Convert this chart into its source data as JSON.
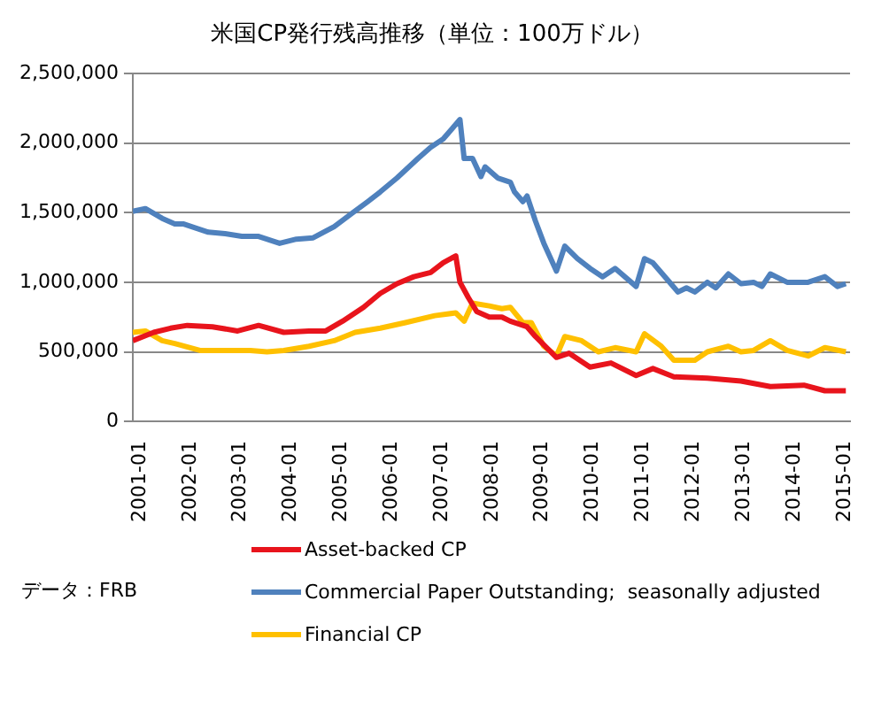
{
  "chart_data": {
    "type": "line",
    "title": "米国CP発行残高推移（単位：100万ドル）",
    "xlim": [
      "2001-01",
      "2015-04"
    ],
    "xticks": [
      "2001-01",
      "2002-01",
      "2003-01",
      "2004-01",
      "2005-01",
      "2006-01",
      "2007-01",
      "2008-01",
      "2009-01",
      "2010-01",
      "2011-01",
      "2012-01",
      "2013-01",
      "2014-01",
      "2015-01"
    ],
    "ylim": [
      0,
      2500000
    ],
    "yticks": [
      0,
      {
        "value": 500000,
        "label": "500,000"
      },
      {
        "value": 1000000,
        "label": "1,000,000"
      },
      {
        "value": 1500000,
        "label": "1,500,000"
      },
      {
        "value": 2000000,
        "label": "2,000,000"
      },
      {
        "value": 2500000,
        "label": "2,500,000"
      }
    ],
    "grid": "y",
    "legend": "bottom",
    "marker": "none",
    "line_style": "solid",
    "annotations": [
      "データ：FRB"
    ],
    "series": [
      {
        "name": "Asset-backed CP",
        "color": "#e8141c",
        "x": [
          "2001-01",
          "2001-06",
          "2001-10",
          "2002-02",
          "2002-08",
          "2003-02",
          "2003-07",
          "2004-01",
          "2004-07",
          "2004-11",
          "2005-03",
          "2005-08",
          "2005-12",
          "2006-04",
          "2006-08",
          "2006-12",
          "2007-03",
          "2007-06",
          "2007-07",
          "2007-09",
          "2007-11",
          "2008-02",
          "2008-05",
          "2008-07",
          "2008-11",
          "2009-01",
          "2009-06",
          "2009-09",
          "2010-02",
          "2010-07",
          "2011-01",
          "2011-05",
          "2011-10",
          "2012-06",
          "2013-02",
          "2013-09",
          "2014-05",
          "2014-10",
          "2015-03"
        ],
        "values": [
          580000,
          640000,
          670000,
          690000,
          680000,
          650000,
          690000,
          640000,
          650000,
          650000,
          720000,
          820000,
          920000,
          990000,
          1040000,
          1070000,
          1140000,
          1190000,
          1000000,
          890000,
          790000,
          750000,
          750000,
          720000,
          680000,
          610000,
          460000,
          490000,
          390000,
          420000,
          330000,
          380000,
          320000,
          310000,
          290000,
          250000,
          260000,
          220000,
          220000
        ]
      },
      {
        "name": "Commercial Paper Outstanding;  seasonally adjusted",
        "color": "#4f81bd",
        "x": [
          "2001-01",
          "2001-04",
          "2001-08",
          "2001-11",
          "2002-01",
          "2002-07",
          "2002-11",
          "2003-03",
          "2003-07",
          "2003-12",
          "2004-04",
          "2004-08",
          "2005-01",
          "2005-05",
          "2005-09",
          "2005-12",
          "2006-04",
          "2006-09",
          "2006-12",
          "2007-03",
          "2007-07",
          "2007-08",
          "2007-10",
          "2007-12",
          "2008-01",
          "2008-04",
          "2008-07",
          "2008-08",
          "2008-10",
          "2008-11",
          "2009-01",
          "2009-03",
          "2009-06",
          "2009-08",
          "2009-11",
          "2010-02",
          "2010-05",
          "2010-08",
          "2011-01",
          "2011-03",
          "2011-05",
          "2011-11",
          "2012-01",
          "2012-03",
          "2012-06",
          "2012-08",
          "2012-11",
          "2013-02",
          "2013-05",
          "2013-07",
          "2013-09",
          "2014-01",
          "2014-06",
          "2014-10",
          "2015-01",
          "2015-03"
        ],
        "values": [
          1510000,
          1530000,
          1460000,
          1420000,
          1420000,
          1360000,
          1350000,
          1330000,
          1330000,
          1280000,
          1310000,
          1320000,
          1400000,
          1490000,
          1580000,
          1650000,
          1750000,
          1890000,
          1970000,
          2030000,
          2170000,
          1890000,
          1890000,
          1760000,
          1830000,
          1750000,
          1720000,
          1650000,
          1580000,
          1620000,
          1440000,
          1280000,
          1080000,
          1260000,
          1170000,
          1100000,
          1040000,
          1100000,
          970000,
          1170000,
          1140000,
          930000,
          960000,
          930000,
          1000000,
          960000,
          1060000,
          990000,
          1000000,
          970000,
          1060000,
          1000000,
          1000000,
          1040000,
          970000,
          990000
        ]
      },
      {
        "name": "Financial CP",
        "color": "#ffc000",
        "x": [
          "2001-01",
          "2001-04",
          "2001-08",
          "2001-11",
          "2002-05",
          "2002-11",
          "2003-05",
          "2003-09",
          "2004-01",
          "2004-07",
          "2005-01",
          "2005-06",
          "2005-12",
          "2006-06",
          "2007-01",
          "2007-06",
          "2007-08",
          "2007-10",
          "2008-02",
          "2008-05",
          "2008-07",
          "2008-10",
          "2008-12",
          "2009-03",
          "2009-06",
          "2009-08",
          "2009-12",
          "2010-04",
          "2010-08",
          "2011-01",
          "2011-03",
          "2011-07",
          "2011-10",
          "2012-03",
          "2012-06",
          "2012-11",
          "2013-02",
          "2013-05",
          "2013-09",
          "2014-01",
          "2014-06",
          "2014-10",
          "2015-03"
        ],
        "values": [
          640000,
          650000,
          580000,
          560000,
          510000,
          510000,
          510000,
          500000,
          510000,
          540000,
          580000,
          640000,
          670000,
          710000,
          760000,
          780000,
          720000,
          850000,
          830000,
          810000,
          820000,
          710000,
          710000,
          540000,
          470000,
          610000,
          580000,
          500000,
          530000,
          500000,
          630000,
          540000,
          440000,
          440000,
          500000,
          540000,
          500000,
          510000,
          580000,
          510000,
          470000,
          530000,
          500000
        ]
      }
    ]
  }
}
